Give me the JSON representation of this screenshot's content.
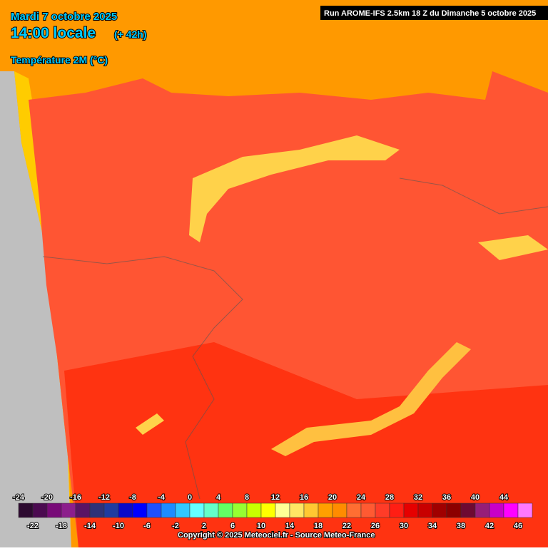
{
  "header": {
    "date": "Mardi 7 octobre 2025",
    "time": "14:00 locale",
    "lead": "(+ 42h)",
    "parameter": "Température 2M (°C)",
    "run": "Run AROME-IFS 2.5km 18 Z du Dimanche 5 octobre 2025"
  },
  "legend": {
    "top_labels": [
      -24,
      -20,
      -16,
      -12,
      -8,
      -4,
      0,
      4,
      8,
      12,
      16,
      20,
      24,
      28,
      32,
      36,
      40,
      44
    ],
    "bottom_labels": [
      -22,
      -18,
      -14,
      -10,
      -6,
      -2,
      2,
      6,
      10,
      14,
      18,
      22,
      26,
      30,
      34,
      38,
      42,
      46
    ],
    "colors": [
      "#2d0a30",
      "#4b0a50",
      "#780a78",
      "#8c1e8c",
      "#5a1464",
      "#2d3278",
      "#1e3ca0",
      "#0a0ac8",
      "#0000ff",
      "#1e50ff",
      "#1e8cff",
      "#32c8ff",
      "#64ffff",
      "#64ffc8",
      "#64ff64",
      "#96ff32",
      "#c8ff00",
      "#ffff00",
      "#ffff96",
      "#ffe664",
      "#ffc832",
      "#ffa000",
      "#ff8c00",
      "#ff6e32",
      "#ff5a32",
      "#ff3c28",
      "#ff1e14",
      "#e60000",
      "#c80000",
      "#a00000",
      "#8c0000",
      "#6e0a32",
      "#961e78",
      "#c800c8",
      "#ff00ff",
      "#ff78ff"
    ]
  },
  "footer": {
    "copyright": "Copyright © 2025 Meteociel.fr - Source Meteo-France"
  }
}
